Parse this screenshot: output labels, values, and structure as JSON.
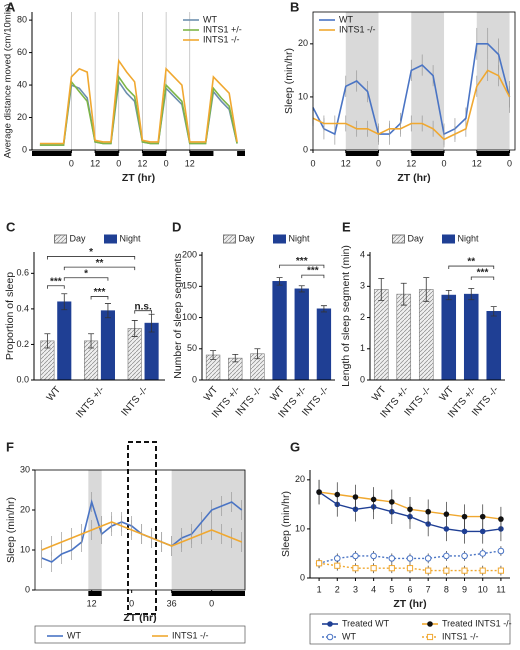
{
  "chart_data": [
    {
      "type": "line",
      "panel": "A",
      "xlabel": "ZT (hr)",
      "ylabel": "Average distance moved (cm/10min)",
      "xlim": [
        -20,
        88
      ],
      "ylim": [
        0,
        85
      ],
      "xticks": [
        0,
        12,
        {
          "value": 24,
          "label": "0"
        },
        {
          "value": 36,
          "label": "12"
        },
        {
          "value": 48,
          "label": "0"
        },
        {
          "value": 60,
          "label": "12"
        }
      ],
      "yticks": [
        0,
        20,
        40,
        60,
        80
      ],
      "vgrid": true,
      "legend": "upper right",
      "night": [
        [
          -20,
          0
        ],
        [
          12,
          24
        ],
        [
          36,
          48
        ],
        [
          60,
          72
        ],
        [
          84,
          88
        ]
      ],
      "x": [
        -16,
        -12,
        -8,
        -4,
        0,
        4,
        8,
        12,
        16,
        20,
        24,
        28,
        32,
        36,
        40,
        44,
        48,
        52,
        56,
        60,
        64,
        68,
        72,
        76,
        80,
        84
      ],
      "series": [
        {
          "name": "WT",
          "color": "#6d8fae",
          "values": [
            3,
            3,
            3,
            3,
            40,
            38,
            32,
            5,
            4,
            4,
            42,
            35,
            30,
            5,
            4,
            4,
            38,
            33,
            28,
            4,
            4,
            4,
            36,
            30,
            25,
            4
          ]
        },
        {
          "name": "INTS1 +/-",
          "color": "#7db547",
          "values": [
            3,
            3,
            3,
            3,
            42,
            36,
            30,
            5,
            4,
            4,
            45,
            38,
            33,
            5,
            4,
            4,
            40,
            35,
            30,
            4,
            4,
            4,
            38,
            32,
            27,
            4
          ]
        },
        {
          "name": "INTS1 -/-",
          "color": "#f0a830",
          "values": [
            4,
            4,
            4,
            4,
            45,
            50,
            48,
            6,
            5,
            5,
            55,
            48,
            42,
            6,
            5,
            5,
            50,
            45,
            40,
            5,
            5,
            5,
            45,
            40,
            35,
            5
          ]
        }
      ]
    },
    {
      "type": "line",
      "panel": "B",
      "xlabel": "ZT (hr)",
      "ylabel": "Sleep (min/hr)",
      "xlim": [
        0,
        74
      ],
      "ylim": [
        0,
        26
      ],
      "xticks": [
        0,
        12,
        {
          "value": 24,
          "label": "0"
        },
        {
          "value": 36,
          "label": "12"
        },
        {
          "value": 48,
          "label": "0"
        },
        {
          "value": 60,
          "label": "12"
        },
        {
          "value": 72,
          "label": "0"
        }
      ],
      "yticks": [
        0,
        10,
        20
      ],
      "frame": true,
      "shade": true,
      "legend": "upper left",
      "night": [
        [
          12,
          24
        ],
        [
          36,
          48
        ],
        [
          60,
          72
        ]
      ],
      "x": [
        0,
        4,
        8,
        12,
        16,
        20,
        24,
        28,
        32,
        36,
        40,
        44,
        48,
        52,
        56,
        60,
        64,
        68,
        72
      ],
      "series": [
        {
          "name": "WT",
          "color": "#4a74c4",
          "values": [
            8,
            4,
            3,
            12,
            13,
            11,
            3,
            3,
            5,
            15,
            16,
            14,
            3,
            4,
            6,
            20,
            20,
            18,
            10
          ],
          "errors": [
            3,
            2,
            2,
            2,
            2,
            2,
            2,
            2,
            2,
            2,
            2,
            2,
            2,
            2,
            2,
            3,
            3,
            3,
            3
          ]
        },
        {
          "name": "INTS1 -/-",
          "color": "#f0a830",
          "values": [
            6,
            5,
            5,
            5,
            4,
            4,
            3,
            4,
            4,
            5,
            5,
            4,
            2,
            3,
            4,
            12,
            15,
            14,
            10
          ],
          "errors": [
            1.5,
            1.5,
            1.5,
            1.5,
            1.5,
            1.5,
            1.5,
            1.5,
            1.5,
            1.5,
            1.5,
            1.5,
            1.5,
            1.5,
            1.5,
            2,
            2,
            2,
            2
          ]
        }
      ]
    },
    {
      "type": "bar",
      "panel": "C",
      "ylabel": "Proportion of sleep",
      "legend": "top",
      "categories": [
        "WT",
        "INTS +/-",
        "INTS -/-"
      ],
      "ylim": [
        0,
        0.72
      ],
      "yticks": [
        {
          "value": 0,
          "label": "0.0"
        },
        0.2,
        0.4,
        0.6
      ],
      "annotations": [
        "***",
        "***",
        "n.s.",
        "*",
        "**",
        "*"
      ],
      "series": [
        {
          "name": "Day",
          "color": "#e8e8e8",
          "pattern": "hatch",
          "values": [
            0.22,
            0.22,
            0.29
          ],
          "errors": [
            0.04,
            0.04,
            0.045
          ]
        },
        {
          "name": "Night",
          "color": "#1f3f94",
          "values": [
            0.44,
            0.39,
            0.32
          ],
          "errors": [
            0.045,
            0.04,
            0.05
          ]
        }
      ]
    },
    {
      "type": "bar",
      "panel": "D",
      "ylabel": "Number of sleep segments",
      "legend": "top",
      "categories": [
        "WT",
        "INTS +/-",
        "INTS -/-",
        "WT",
        "INTS +/-",
        "INTS -/-"
      ],
      "ylim": [
        0,
        205
      ],
      "yticks": [
        0,
        50,
        100,
        150,
        200
      ],
      "annotations": [
        "***",
        "***"
      ],
      "series": [
        {
          "name": "Day",
          "color": "#e8e8e8",
          "pattern": "hatch",
          "values": [
            40,
            35,
            42,
            null,
            null,
            null
          ],
          "errors": [
            7,
            6,
            8,
            null,
            null,
            null
          ]
        },
        {
          "name": "Night",
          "color": "#1f3f94",
          "values": [
            null,
            null,
            null,
            158,
            146,
            114
          ],
          "errors": [
            null,
            null,
            null,
            6,
            5,
            5
          ]
        }
      ]
    },
    {
      "type": "bar",
      "panel": "E",
      "ylabel": "Length of sleep segment (min)",
      "legend": "top",
      "categories": [
        "WT",
        "INTS +/-",
        "INTS -/-",
        "WT",
        "INTS +/-",
        "INTS -/-"
      ],
      "ylim": [
        0,
        4.1
      ],
      "yticks": [
        0,
        1,
        2,
        3,
        4
      ],
      "annotations": [
        "**",
        "***"
      ],
      "series": [
        {
          "name": "Day",
          "color": "#e8e8e8",
          "pattern": "hatch",
          "values": [
            2.9,
            2.75,
            2.9,
            null,
            null,
            null
          ],
          "errors": [
            0.35,
            0.35,
            0.38,
            null,
            null,
            null
          ]
        },
        {
          "name": "Night",
          "color": "#1f3f94",
          "values": [
            null,
            null,
            null,
            2.72,
            2.75,
            2.2
          ],
          "errors": [
            null,
            null,
            null,
            0.15,
            0.18,
            0.15
          ]
        }
      ]
    },
    {
      "type": "line",
      "panel": "F",
      "xlabel": "ZT (hr)",
      "ylabel": "Sleep (min/hr)",
      "xlim": [
        -5,
        58
      ],
      "ylim": [
        0,
        30
      ],
      "xticks": [
        12,
        {
          "value": 24,
          "label": "0"
        },
        36,
        {
          "value": 48,
          "label": "0"
        }
      ],
      "yticks": [
        0,
        10,
        20,
        30
      ],
      "frame": true,
      "shade": true,
      "legend": "bottom",
      "night": [
        [
          11,
          15
        ],
        [
          36,
          58
        ]
      ],
      "x": [
        -3,
        0,
        3,
        6,
        9,
        12,
        15,
        18,
        21,
        24,
        27,
        30,
        33,
        36,
        39,
        42,
        45,
        48,
        51,
        54,
        57
      ],
      "series": [
        {
          "name": "WT",
          "color": "#4a74c4",
          "values": [
            8,
            7,
            9,
            10,
            12,
            22,
            14,
            16,
            17,
            16,
            14,
            13,
            12,
            11,
            13,
            14,
            17,
            20,
            21,
            22,
            20
          ],
          "errors": [
            2.5,
            2.5,
            2.5,
            2.5,
            2.5,
            2.5,
            2.5,
            2.5,
            2.5,
            2.5,
            2.5,
            2.5,
            2.5,
            2.5,
            2.5,
            2.5,
            2.5,
            2.5,
            2.5,
            2.5,
            2.5
          ]
        },
        {
          "name": "INTS1 -/-",
          "color": "#f0a830",
          "values": [
            10,
            11,
            12,
            13,
            14,
            15,
            16,
            17,
            16,
            15,
            14,
            13,
            12,
            11,
            12,
            13,
            14,
            15,
            14,
            13,
            12
          ],
          "errors": [
            2.5,
            2.5,
            2.5,
            2.5,
            2.5,
            2.5,
            2.5,
            2.5,
            2.5,
            2.5,
            2.5,
            2.5,
            2.5,
            2.5,
            2.5,
            2.5,
            2.5,
            2.5,
            2.5,
            2.5,
            2.5
          ]
        }
      ]
    },
    {
      "type": "line",
      "panel": "G",
      "xlabel": "ZT (hr)",
      "ylabel": "Sleep (min/hr)",
      "xlim": [
        0.5,
        11.5
      ],
      "ylim": [
        0,
        22
      ],
      "xticks": [
        1,
        2,
        3,
        4,
        5,
        6,
        7,
        8,
        9,
        10,
        11
      ],
      "yticks": [
        0,
        10,
        20
      ],
      "legend": "bottom",
      "x": [
        1,
        2,
        3,
        4,
        5,
        6,
        7,
        8,
        9,
        10,
        11
      ],
      "series": [
        {
          "name": "Treated WT",
          "color": "#1f3f94",
          "marker": "circle",
          "values": [
            17.5,
            15,
            14,
            14.5,
            13.5,
            12.5,
            11,
            10,
            9.5,
            9.5,
            10
          ],
          "errors": [
            2.5,
            2.5,
            2.5,
            2.5,
            2.5,
            2.5,
            2.5,
            2.5,
            2.5,
            2.5,
            2.5
          ]
        },
        {
          "name": "Treated INTS1 -/-",
          "color": "#f0a830",
          "marker": "circle",
          "marker_color": "#111111",
          "values": [
            17.5,
            17,
            16.5,
            16,
            15.5,
            14,
            13.5,
            13,
            12.5,
            12.5,
            12
          ],
          "errors": [
            2.5,
            2.5,
            2.5,
            2.5,
            2.5,
            2.5,
            2.5,
            2.5,
            2.5,
            2.5,
            2.5
          ]
        },
        {
          "name": "WT",
          "color": "#4a74c4",
          "marker": "open-circle",
          "line_style": "dotted",
          "values": [
            3,
            4,
            4.5,
            4.5,
            4,
            4,
            4,
            4.5,
            4.5,
            5,
            5.5
          ],
          "errors": [
            1,
            1,
            1,
            1,
            1,
            1,
            1,
            1,
            1,
            1,
            1
          ]
        },
        {
          "name": "INTS1 -/-",
          "color": "#f0a830",
          "marker": "open-square",
          "line_style": "dotted",
          "values": [
            3,
            2.5,
            2,
            2,
            2,
            2,
            1.5,
            1.5,
            1.5,
            1.5,
            1.5
          ],
          "errors": [
            1,
            1,
            1,
            1,
            1,
            1,
            1,
            1,
            1,
            1,
            1
          ]
        }
      ]
    }
  ]
}
